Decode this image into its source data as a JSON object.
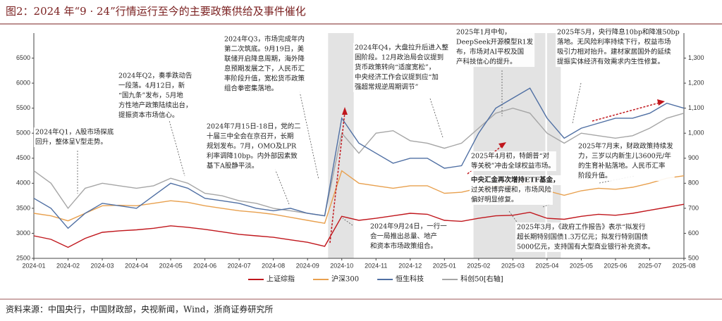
{
  "chart_data": {
    "type": "line",
    "title": "图2：2024 年“9 · 24”行情运行至今的主要政策供给及事件催化",
    "source": "资料来源：中国央行，中国财政部，央视新闻，Wind，浙商证券研究所",
    "categories": [
      "2024-01",
      null,
      "2024-02",
      null,
      "2024-03",
      null,
      "2024-04",
      null,
      "2024-05",
      null,
      "2024-06",
      null,
      "2024-07",
      null,
      "2024-08",
      null,
      "2024-09",
      null,
      "2024-10",
      null,
      "2024-11",
      null,
      "2024-12",
      null,
      "2025-01",
      null,
      "2025-02",
      null,
      "2025-03",
      null,
      "2025-04",
      null,
      "2025-05",
      null,
      "2025-06",
      null,
      "2025-07",
      null,
      "2025-08"
    ],
    "ylim": [
      2500,
      7000
    ],
    "yticks": [
      2500,
      3000,
      3500,
      4000,
      4500,
      5000,
      5500,
      6000,
      6500
    ],
    "y2lim": [
      500,
      1400
    ],
    "y2ticks": [
      500,
      600,
      700,
      800,
      900,
      {
        "value": 1000,
        "label": "1,000"
      },
      {
        "value": 1100,
        "label": "1,100"
      },
      {
        "value": 1200,
        "label": "1,200"
      },
      {
        "value": 1300,
        "label": "1,300"
      }
    ],
    "series": [
      {
        "name": "上证综指",
        "color": "#c0161c",
        "values": [
          2950,
          2880,
          2720,
          2900,
          3020,
          3050,
          3070,
          3100,
          3150,
          3120,
          3080,
          3030,
          2980,
          2950,
          2920,
          2870,
          2820,
          2740,
          3340,
          3260,
          3300,
          3350,
          3400,
          3380,
          3260,
          3240,
          3300,
          3350,
          3360,
          3420,
          3300,
          3280,
          3340,
          3380,
          3360,
          3400,
          3460,
          3520,
          3580
        ]
      },
      {
        "name": "沪深300",
        "color": "#e8a04e",
        "values": [
          3400,
          3350,
          3250,
          3400,
          3550,
          3560,
          3550,
          3600,
          3650,
          3620,
          3550,
          3500,
          3450,
          3420,
          3380,
          3320,
          3260,
          3200,
          4250,
          4000,
          3950,
          3900,
          3950,
          3950,
          3800,
          3820,
          3900,
          3950,
          3950,
          4000,
          3850,
          3760,
          3850,
          3900,
          3880,
          3920,
          4000,
          4100,
          4150
        ]
      },
      {
        "name": "恒生科技",
        "color": "#4f6fa3",
        "values": [
          3700,
          3500,
          3100,
          3400,
          3600,
          3550,
          3500,
          3750,
          4000,
          3900,
          3700,
          3650,
          3600,
          3500,
          3450,
          3500,
          3400,
          3350,
          5300,
          4800,
          4600,
          4400,
          4500,
          4500,
          4300,
          4350,
          5000,
          5500,
          5700,
          5900,
          5300,
          4900,
          5100,
          5200,
          5300,
          5300,
          5400,
          5600,
          5500
        ]
      },
      {
        "name": "科创50[右轴]",
        "color": "#a6a6a6",
        "axis": "y2",
        "values": [
          850,
          800,
          700,
          780,
          800,
          790,
          780,
          790,
          820,
          800,
          760,
          750,
          730,
          720,
          700,
          690,
          680,
          670,
          1000,
          920,
          1000,
          1010,
          970,
          960,
          940,
          960,
          1020,
          1080,
          1100,
          1080,
          1000,
          960,
          1000,
          990,
          980,
          990,
          1020,
          1060,
          1080
        ]
      }
    ],
    "annotations": [
      {
        "lines": [
          "2024年Q1，A股市场探底",
          "回升，整体呈V型走势。"
        ]
      },
      {
        "lines": [
          "2024年Q2，奏季跌动告",
          "一段落。4月12日，新",
          "“国九条”发布，5月地",
          "方性地产政策陆续出台，",
          "提振资本市场信心。"
        ]
      },
      {
        "lines": [
          "2024年7月15日-18日，党的二",
          "十届三中全会在京召开，长期",
          "规划发布。7月，OMO及LPR",
          "利率调降10bp。内外部因素致",
          "基下A股静平淡。"
        ]
      },
      {
        "lines": [
          "2024年Q3，市场完成年内",
          "第二次筑底。9月19日，美",
          "联储开启降息周期，海外降",
          "息预期发展之下，人民币汇",
          "率阶段升值，宽松货币政策",
          "组合拳密集落地。"
        ]
      },
      {
        "lines": [
          "2024年Q4，大盘拉升后进入整",
          "固阶段。12月政治局会议提到",
          "货币政策转向“适度宽松”，",
          "中央经济工作会议提到应“加",
          "强超常规逆周期调节”"
        ]
      },
      {
        "lines": [
          "2025年1月中旬，",
          "DeepSeek开源模型R1发",
          "布，市场对AI平权及国",
          "产科技信心的提升。"
        ]
      },
      {
        "lines": [
          "2025年5月，央行降息10bp和降准50bp",
          "落地。无风险利率持续下行，权益市场",
          "吸引力相对抬升。建材家居国外的延续",
          "提振实体经济有效需求内生性修复。"
        ]
      },
      {
        "lines": [
          "2025年4月初，特朗普“对",
          "等关税”冲击全球权益市场。"
        ]
      },
      {
        "lines": [
          "中央汇金再次增持ETF基金，"
        ]
      },
      {
        "lines": [
          "过关税博弈缓和，市场风险",
          "偏好明显修复。"
        ]
      },
      {
        "lines": [
          "2025年7月末，财政政策持续发",
          "力，三岁以内新生儿3600元/年",
          "的生育补贴落地。人民币汇率",
          "阶段升值。"
        ]
      },
      {
        "lines": [
          "2024年9月24日，一行一",
          "会一局推出总量、地产",
          "和资本市场政策组合。"
        ]
      },
      {
        "lines": [
          "2025年3月，《政府工作报告》表示“拟发行",
          "超长期特别国债1.3万亿元；拟发行特别国债",
          "5000亿元，支持国有大型商业银行补充资本。"
        ]
      }
    ]
  }
}
